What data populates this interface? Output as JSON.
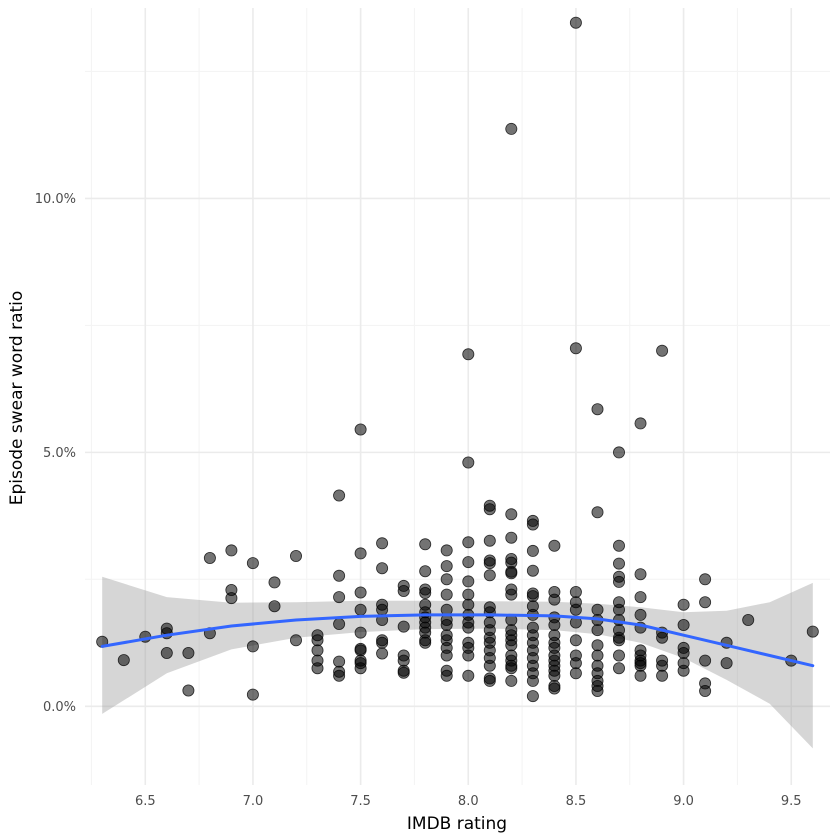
{
  "chart_data": {
    "type": "scatter",
    "title": "",
    "xlabel": "IMDB rating",
    "ylabel": "Episode swear word ratio",
    "xlim": [
      6.22,
      9.68
    ],
    "ylim": [
      -0.0155,
      0.1375
    ],
    "x_ticks": [
      6.5,
      7.0,
      7.5,
      8.0,
      8.5,
      9.0,
      9.5
    ],
    "x_tick_labels": [
      "6.5",
      "7.0",
      "7.5",
      "8.0",
      "8.5",
      "9.0",
      "9.5"
    ],
    "y_ticks": [
      0.0,
      0.05,
      0.1
    ],
    "y_tick_labels": [
      "0.0%",
      "5.0%",
      "10.0%"
    ],
    "grid": true,
    "legend": "none",
    "colors": {
      "points": "#000000",
      "point_opacity": 0.55,
      "smooth_line": "#3366ff",
      "ribbon": "#999999",
      "ribbon_opacity": 0.4,
      "grid_major": "#ebebeb",
      "grid_minor": "#f4f4f4"
    },
    "points": [
      [
        6.3,
        0.0127
      ],
      [
        6.4,
        0.0091
      ],
      [
        6.5,
        0.0137
      ],
      [
        6.6,
        0.0153
      ],
      [
        6.6,
        0.0144
      ],
      [
        6.6,
        0.0105
      ],
      [
        6.7,
        0.0105
      ],
      [
        6.7,
        0.0031
      ],
      [
        6.8,
        0.0292
      ],
      [
        6.8,
        0.0144
      ],
      [
        6.9,
        0.0307
      ],
      [
        6.9,
        0.0229
      ],
      [
        6.9,
        0.0213
      ],
      [
        7.0,
        0.0282
      ],
      [
        7.0,
        0.0118
      ],
      [
        7.0,
        0.0023
      ],
      [
        7.1,
        0.0244
      ],
      [
        7.1,
        0.0197
      ],
      [
        7.2,
        0.0296
      ],
      [
        7.2,
        0.013
      ],
      [
        7.3,
        0.014
      ],
      [
        7.3,
        0.013
      ],
      [
        7.3,
        0.011
      ],
      [
        7.3,
        0.009
      ],
      [
        7.3,
        0.0075
      ],
      [
        7.4,
        0.0415
      ],
      [
        7.4,
        0.0257
      ],
      [
        7.4,
        0.0215
      ],
      [
        7.4,
        0.0162
      ],
      [
        7.4,
        0.0088
      ],
      [
        7.4,
        0.0068
      ],
      [
        7.4,
        0.006
      ],
      [
        7.5,
        0.0545
      ],
      [
        7.5,
        0.0301
      ],
      [
        7.5,
        0.0224
      ],
      [
        7.5,
        0.019
      ],
      [
        7.5,
        0.0145
      ],
      [
        7.5,
        0.0113
      ],
      [
        7.5,
        0.011
      ],
      [
        7.5,
        0.009
      ],
      [
        7.5,
        0.0085
      ],
      [
        7.5,
        0.0075
      ],
      [
        7.6,
        0.0321
      ],
      [
        7.6,
        0.0272
      ],
      [
        7.6,
        0.02
      ],
      [
        7.6,
        0.019
      ],
      [
        7.6,
        0.017
      ],
      [
        7.6,
        0.013
      ],
      [
        7.6,
        0.0125
      ],
      [
        7.6,
        0.0104
      ],
      [
        7.7,
        0.0237
      ],
      [
        7.7,
        0.0227
      ],
      [
        7.7,
        0.0157
      ],
      [
        7.7,
        0.01
      ],
      [
        7.7,
        0.009
      ],
      [
        7.7,
        0.007
      ],
      [
        7.7,
        0.0066
      ],
      [
        7.8,
        0.0319
      ],
      [
        7.8,
        0.0266
      ],
      [
        7.8,
        0.023
      ],
      [
        7.8,
        0.0223
      ],
      [
        7.8,
        0.02
      ],
      [
        7.8,
        0.0185
      ],
      [
        7.8,
        0.0175
      ],
      [
        7.8,
        0.0165
      ],
      [
        7.8,
        0.0155
      ],
      [
        7.8,
        0.0145
      ],
      [
        7.8,
        0.013
      ],
      [
        7.8,
        0.0125
      ],
      [
        7.9,
        0.0307
      ],
      [
        7.9,
        0.0276
      ],
      [
        7.9,
        0.025
      ],
      [
        7.9,
        0.022
      ],
      [
        7.9,
        0.019
      ],
      [
        7.9,
        0.017
      ],
      [
        7.9,
        0.016
      ],
      [
        7.9,
        0.014
      ],
      [
        7.9,
        0.013
      ],
      [
        7.9,
        0.0115
      ],
      [
        7.9,
        0.01
      ],
      [
        7.9,
        0.007
      ],
      [
        7.9,
        0.006
      ],
      [
        8.0,
        0.0693
      ],
      [
        8.0,
        0.048
      ],
      [
        8.0,
        0.0323
      ],
      [
        8.0,
        0.0284
      ],
      [
        8.0,
        0.0246
      ],
      [
        8.0,
        0.022
      ],
      [
        8.0,
        0.02
      ],
      [
        8.0,
        0.018
      ],
      [
        8.0,
        0.0165
      ],
      [
        8.0,
        0.0155
      ],
      [
        8.0,
        0.0125
      ],
      [
        8.0,
        0.0115
      ],
      [
        8.0,
        0.01
      ],
      [
        8.0,
        0.006
      ],
      [
        8.1,
        0.0395
      ],
      [
        8.1,
        0.0388
      ],
      [
        8.1,
        0.0326
      ],
      [
        8.1,
        0.0287
      ],
      [
        8.1,
        0.0282
      ],
      [
        8.1,
        0.0258
      ],
      [
        8.1,
        0.0195
      ],
      [
        8.1,
        0.0185
      ],
      [
        8.1,
        0.0165
      ],
      [
        8.1,
        0.015
      ],
      [
        8.1,
        0.0135
      ],
      [
        8.1,
        0.0125
      ],
      [
        8.1,
        0.011
      ],
      [
        8.1,
        0.0095
      ],
      [
        8.1,
        0.008
      ],
      [
        8.1,
        0.0055
      ],
      [
        8.1,
        0.005
      ],
      [
        8.2,
        0.1137
      ],
      [
        8.2,
        0.0378
      ],
      [
        8.2,
        0.0332
      ],
      [
        8.2,
        0.029
      ],
      [
        8.2,
        0.0283
      ],
      [
        8.2,
        0.0265
      ],
      [
        8.2,
        0.0262
      ],
      [
        8.2,
        0.023
      ],
      [
        8.2,
        0.022
      ],
      [
        8.2,
        0.017
      ],
      [
        8.2,
        0.015
      ],
      [
        8.2,
        0.014
      ],
      [
        8.2,
        0.013
      ],
      [
        8.2,
        0.012
      ],
      [
        8.2,
        0.01
      ],
      [
        8.2,
        0.009
      ],
      [
        8.2,
        0.008
      ],
      [
        8.2,
        0.0075
      ],
      [
        8.2,
        0.005
      ],
      [
        8.3,
        0.0365
      ],
      [
        8.3,
        0.0358
      ],
      [
        8.3,
        0.0306
      ],
      [
        8.3,
        0.0267
      ],
      [
        8.3,
        0.0222
      ],
      [
        8.3,
        0.0217
      ],
      [
        8.3,
        0.0197
      ],
      [
        8.3,
        0.018
      ],
      [
        8.3,
        0.0155
      ],
      [
        8.3,
        0.014
      ],
      [
        8.3,
        0.0125
      ],
      [
        8.3,
        0.011
      ],
      [
        8.3,
        0.0095
      ],
      [
        8.3,
        0.008
      ],
      [
        8.3,
        0.0065
      ],
      [
        8.3,
        0.005
      ],
      [
        8.3,
        0.002
      ],
      [
        8.4,
        0.0316
      ],
      [
        8.4,
        0.0225
      ],
      [
        8.4,
        0.021
      ],
      [
        8.4,
        0.0175
      ],
      [
        8.4,
        0.016
      ],
      [
        8.4,
        0.014
      ],
      [
        8.4,
        0.0125
      ],
      [
        8.4,
        0.0115
      ],
      [
        8.4,
        0.01
      ],
      [
        8.4,
        0.009
      ],
      [
        8.4,
        0.008
      ],
      [
        8.4,
        0.007
      ],
      [
        8.4,
        0.006
      ],
      [
        8.4,
        0.004
      ],
      [
        8.4,
        0.0035
      ],
      [
        8.5,
        0.1346
      ],
      [
        8.5,
        0.0705
      ],
      [
        8.5,
        0.0225
      ],
      [
        8.5,
        0.0205
      ],
      [
        8.5,
        0.019
      ],
      [
        8.5,
        0.0165
      ],
      [
        8.5,
        0.013
      ],
      [
        8.5,
        0.01
      ],
      [
        8.5,
        0.0085
      ],
      [
        8.5,
        0.0065
      ],
      [
        8.6,
        0.0585
      ],
      [
        8.6,
        0.0382
      ],
      [
        8.6,
        0.019
      ],
      [
        8.6,
        0.017
      ],
      [
        8.6,
        0.015
      ],
      [
        8.6,
        0.012
      ],
      [
        8.6,
        0.01
      ],
      [
        8.6,
        0.008
      ],
      [
        8.6,
        0.0065
      ],
      [
        8.6,
        0.005
      ],
      [
        8.6,
        0.004
      ],
      [
        8.6,
        0.003
      ],
      [
        8.7,
        0.05
      ],
      [
        8.7,
        0.0316
      ],
      [
        8.7,
        0.0281
      ],
      [
        8.7,
        0.0255
      ],
      [
        8.7,
        0.0245
      ],
      [
        8.7,
        0.0205
      ],
      [
        8.7,
        0.019
      ],
      [
        8.7,
        0.017
      ],
      [
        8.7,
        0.015
      ],
      [
        8.7,
        0.0135
      ],
      [
        8.7,
        0.013
      ],
      [
        8.7,
        0.01
      ],
      [
        8.7,
        0.0075
      ],
      [
        8.8,
        0.0557
      ],
      [
        8.8,
        0.026
      ],
      [
        8.8,
        0.0215
      ],
      [
        8.8,
        0.018
      ],
      [
        8.8,
        0.0155
      ],
      [
        8.8,
        0.011
      ],
      [
        8.8,
        0.01
      ],
      [
        8.8,
        0.009
      ],
      [
        8.8,
        0.0085
      ],
      [
        8.8,
        0.008
      ],
      [
        8.8,
        0.006
      ],
      [
        8.9,
        0.07
      ],
      [
        8.9,
        0.0145
      ],
      [
        8.9,
        0.0135
      ],
      [
        8.9,
        0.009
      ],
      [
        8.9,
        0.008
      ],
      [
        8.9,
        0.006
      ],
      [
        9.0,
        0.02
      ],
      [
        9.0,
        0.016
      ],
      [
        9.0,
        0.0115
      ],
      [
        9.0,
        0.0105
      ],
      [
        9.0,
        0.0085
      ],
      [
        9.0,
        0.007
      ],
      [
        9.1,
        0.025
      ],
      [
        9.1,
        0.0205
      ],
      [
        9.1,
        0.009
      ],
      [
        9.1,
        0.0045
      ],
      [
        9.1,
        0.003
      ],
      [
        9.2,
        0.0125
      ],
      [
        9.2,
        0.0085
      ],
      [
        9.3,
        0.017
      ],
      [
        9.5,
        0.009
      ],
      [
        9.6,
        0.0147
      ]
    ],
    "smooth": {
      "x": [
        6.3,
        6.6,
        6.9,
        7.2,
        7.5,
        7.8,
        8.1,
        8.4,
        8.6,
        8.8,
        9.0,
        9.2,
        9.4,
        9.6
      ],
      "y": [
        0.0118,
        0.014,
        0.0158,
        0.017,
        0.0177,
        0.018,
        0.018,
        0.0178,
        0.0172,
        0.016,
        0.014,
        0.012,
        0.01,
        0.008
      ],
      "lower": [
        -0.0015,
        0.0065,
        0.0112,
        0.0135,
        0.0146,
        0.0152,
        0.0153,
        0.015,
        0.0142,
        0.0125,
        0.0095,
        0.0052,
        0.0005,
        -0.0083
      ],
      "upper": [
        0.0255,
        0.0215,
        0.0204,
        0.0205,
        0.0208,
        0.0208,
        0.0207,
        0.0206,
        0.0202,
        0.0195,
        0.0185,
        0.0188,
        0.0205,
        0.0243
      ]
    }
  }
}
